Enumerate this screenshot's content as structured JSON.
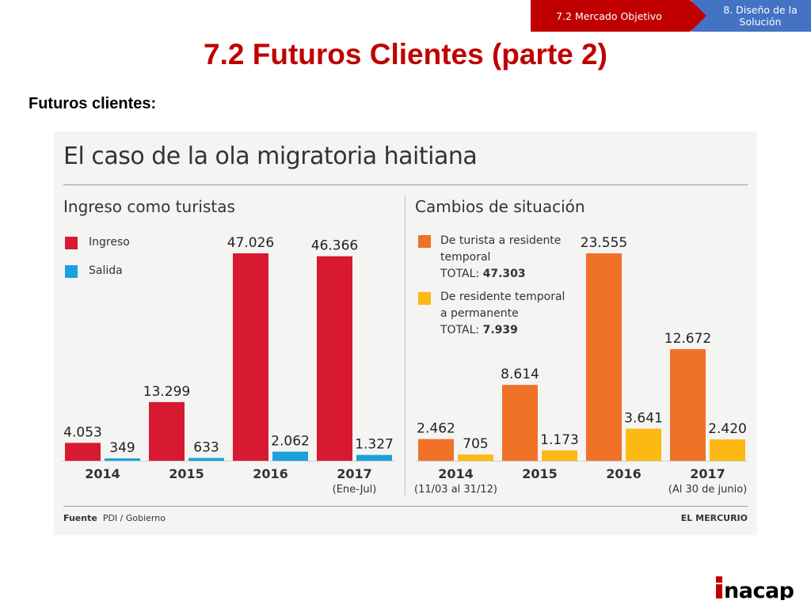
{
  "breadcrumb": {
    "current": "7.2  Mercado Objetivo",
    "next": "8. Diseño de la Solución"
  },
  "page_title": "7.2 Futuros Clientes (parte 2)",
  "subtitle": "Futuros clientes:",
  "figure": {
    "title": "El caso de la ola migratoria haitiana",
    "source_label": "Fuente",
    "source_value": "PDI / Gobierno",
    "publisher": "EL MERCURIO"
  },
  "logo_text": "inacap",
  "colors": {
    "ingreso": "#d71a32",
    "salida": "#1ba1dd",
    "temporal": "#f07128",
    "permanente": "#fdb913",
    "title_red": "#c00000",
    "crumb_blue": "#4472c4"
  },
  "chart_data": [
    {
      "type": "bar",
      "title": "Ingreso como turistas",
      "categories": [
        "2014",
        "2015",
        "2016",
        "2017"
      ],
      "category_notes": [
        "",
        "",
        "",
        "(Ene-Jul)"
      ],
      "series": [
        {
          "name": "Ingreso",
          "values": [
            4053,
            13299,
            47026,
            46366
          ],
          "labels": [
            "4.053",
            "13.299",
            "47.026",
            "46.366"
          ]
        },
        {
          "name": "Salida",
          "values": [
            349,
            633,
            2062,
            1327
          ],
          "labels": [
            "349",
            "633",
            "2.062",
            "1.327"
          ]
        }
      ],
      "legend": [
        "Ingreso",
        "Salida"
      ],
      "legend_position": "top-left"
    },
    {
      "type": "bar",
      "title": "Cambios de situación",
      "categories": [
        "2014",
        "2015",
        "2016",
        "2017"
      ],
      "category_notes": [
        "(11/03 al 31/12)",
        "",
        "",
        "(Al 30 de junio)"
      ],
      "series": [
        {
          "name": "De turista a residente temporal",
          "values": [
            2462,
            8614,
            23555,
            12672
          ],
          "labels": [
            "2.462",
            "8.614",
            "23.555",
            "12.672"
          ]
        },
        {
          "name": "De residente temporal a permanente",
          "values": [
            705,
            1173,
            3641,
            2420
          ],
          "labels": [
            "705",
            "1.173",
            "3.641",
            "2.420"
          ]
        }
      ],
      "legend": [
        {
          "line1": "De turista a residente",
          "line2": "temporal",
          "total_label": "TOTAL:",
          "total_value": "47.303"
        },
        {
          "line1": "De residente temporal",
          "line2": "a permanente",
          "total_label": "TOTAL:",
          "total_value": "7.939"
        }
      ],
      "legend_position": "top-left"
    }
  ]
}
